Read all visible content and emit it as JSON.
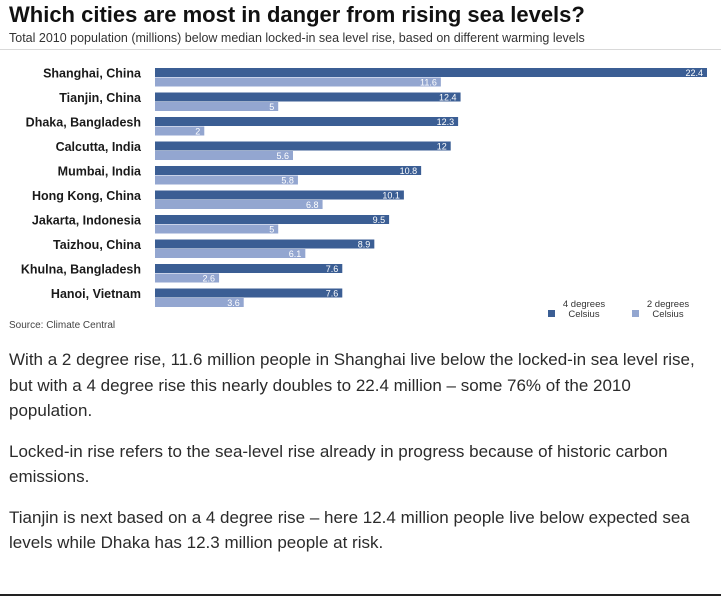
{
  "article": {
    "title": "Which cities are most in danger from rising sea levels?",
    "subtitle": "Total 2010 population (millions) below median locked-in sea level rise, based on different warming levels",
    "source": "Source: Climate Central",
    "paragraphs": [
      "With a 2 degree rise, 11.6 million people in Shanghai live below the locked-in sea level rise, but with a 4 degree rise this nearly doubles to 22.4 million – some 76% of the 2010 population.",
      "Locked-in rise refers to the sea-level rise already in progress because of historic carbon emissions.",
      "Tianjin is next based on a 4 degree rise – here 12.4 million people live below expected sea levels while Dhaka has 12.3 million people at risk."
    ]
  },
  "legend": {
    "four": "4 degrees Celsius",
    "two": "2 degrees Celsius"
  },
  "colors": {
    "four_degrees": "#3b5e94",
    "two_degrees": "#93a6d0",
    "bar_label": "#ffffff"
  },
  "chart_data": {
    "type": "bar",
    "orientation": "horizontal",
    "title": "Which cities are most in danger from rising sea levels?",
    "subtitle": "Total 2010 population (millions) below median locked-in sea level rise, based on different warming levels",
    "categories": [
      "Shanghai, China",
      "Tianjin, China",
      "Dhaka, Bangladesh",
      "Calcutta, India",
      "Mumbai, India",
      "Hong Kong, China",
      "Jakarta, Indonesia",
      "Taizhou, China",
      "Khulna, Bangladesh",
      "Hanoi, Vietnam"
    ],
    "series": [
      {
        "name": "4 degrees Celsius",
        "values": [
          22.4,
          12.4,
          12.3,
          12,
          10.8,
          10.1,
          9.5,
          8.9,
          7.6,
          7.6
        ]
      },
      {
        "name": "2 degrees Celsius",
        "values": [
          11.6,
          5,
          2,
          5.6,
          5.8,
          6.8,
          5,
          6.1,
          2.6,
          3.6
        ]
      }
    ],
    "value_labels": {
      "4 degrees Celsius": [
        "22.4",
        "12.4",
        "12.3",
        "12",
        "10.8",
        "10.1",
        "9.5",
        "8.9",
        "7.6",
        "7.6"
      ],
      "2 degrees Celsius": [
        "11.6",
        "5",
        "2",
        "5.6",
        "5.8",
        "6.8",
        "5",
        "6.1",
        "2.6",
        "3.6"
      ]
    },
    "xlim": [
      0,
      22.4
    ],
    "grid": false,
    "legend_position": "bottom-right",
    "source": "Source: Climate Central"
  }
}
